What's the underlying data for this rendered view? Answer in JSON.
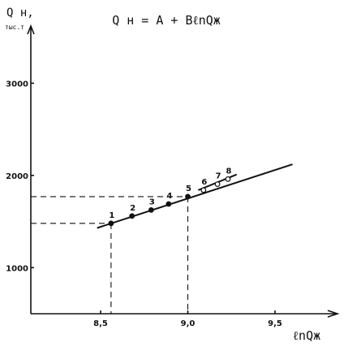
{
  "chart_data": {
    "type": "scatter",
    "title": "Q н = A + BℓnQж",
    "ylabel_main": "Q н,",
    "ylabel_unit": "тыс.т",
    "xlabel": "ℓnQж",
    "xlim": [
      8.1,
      9.83
    ],
    "ylim": [
      500,
      3550
    ],
    "x_ticks": [
      8.5,
      9.0,
      9.5
    ],
    "x_tick_labels": [
      "8,5",
      "9,0",
      "9,5"
    ],
    "y_ticks": [
      1000,
      2000,
      3000
    ],
    "y_tick_labels": [
      "1000",
      "2000",
      "3000"
    ],
    "points": [
      {
        "label": "1",
        "x": 8.56,
        "y": 1480
      },
      {
        "label": "2",
        "x": 8.68,
        "y": 1560
      },
      {
        "label": "3",
        "x": 8.79,
        "y": 1625
      },
      {
        "label": "4",
        "x": 8.89,
        "y": 1690
      },
      {
        "label": "5",
        "x": 9.0,
        "y": 1770
      },
      {
        "label": "6",
        "x": 9.09,
        "y": 1840
      },
      {
        "label": "7",
        "x": 9.17,
        "y": 1905
      },
      {
        "label": "8",
        "x": 9.23,
        "y": 1960
      }
    ],
    "fit_line": {
      "x": [
        8.48,
        9.6
      ],
      "y": [
        1430,
        2120
      ]
    },
    "short_line": {
      "x": [
        9.06,
        9.28
      ],
      "y": [
        1840,
        2010
      ]
    },
    "guides": [
      {
        "x": 8.56,
        "y": 1480
      },
      {
        "x": 9.0,
        "y": 1770
      }
    ],
    "grid": false
  }
}
